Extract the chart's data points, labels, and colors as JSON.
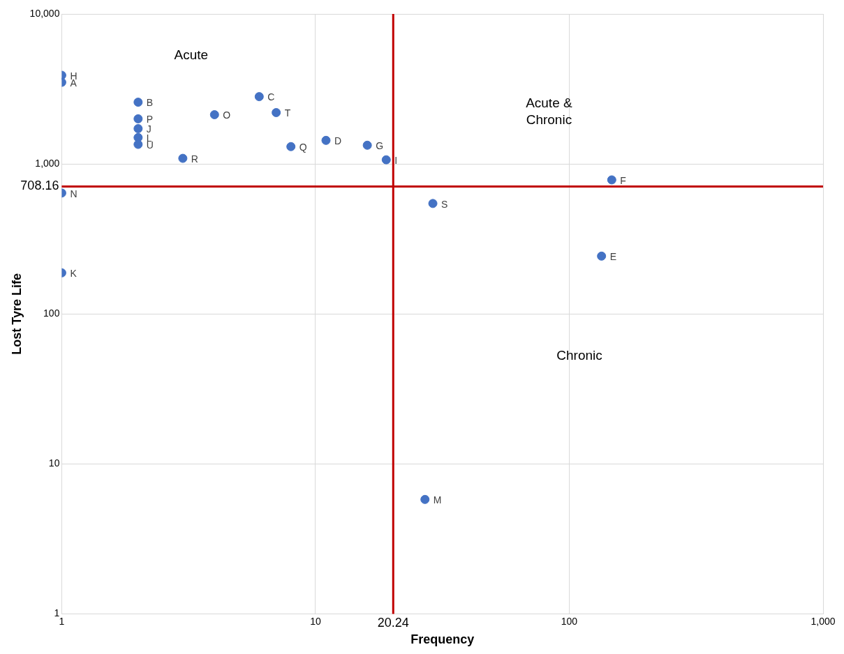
{
  "chart_data": {
    "type": "scatter",
    "xlabel": "Frequency",
    "ylabel": "Lost Tyre Life",
    "log": "xy",
    "grid": true,
    "legend": false,
    "marker": "circle",
    "xlim": [
      1,
      1000
    ],
    "xticks": [
      1,
      10,
      100,
      {
        "value": 1000,
        "label": "1,000"
      }
    ],
    "ylim": [
      1,
      10000
    ],
    "yticks": [
      1,
      10,
      100,
      {
        "value": 1000,
        "label": "1,000"
      },
      {
        "value": 10000,
        "label": "10,000"
      }
    ],
    "series": [
      {
        "color": "#4472c4",
        "x": [
          1,
          1,
          2,
          2,
          2,
          2,
          2,
          3,
          4,
          6,
          7,
          8,
          11,
          16,
          19,
          147,
          29,
          134,
          1,
          1,
          27
        ],
        "values": [
          3900,
          3500,
          2580,
          2000,
          1720,
          1500,
          1350,
          1090,
          2130,
          2810,
          2200,
          1305,
          1436,
          1333,
          1066,
          783,
          545,
          243,
          640,
          188,
          5.8
        ],
        "value_labels": [
          "H",
          "A",
          "B",
          "P",
          "J",
          "L",
          "U",
          "R",
          "O",
          "C",
          "T",
          "Q",
          "D",
          "G",
          "I",
          "F",
          "S",
          "E",
          "N",
          "K",
          "M"
        ]
      }
    ],
    "ref_lines": [
      {
        "axis": "y",
        "value": 708.16,
        "label": "708.16",
        "color": "#c00000"
      },
      {
        "axis": "x",
        "value": 20.24,
        "label": "20.24",
        "color": "#c00000"
      }
    ],
    "annotations": [
      "Acute",
      "Acute & Chronic",
      "Chronic"
    ]
  }
}
